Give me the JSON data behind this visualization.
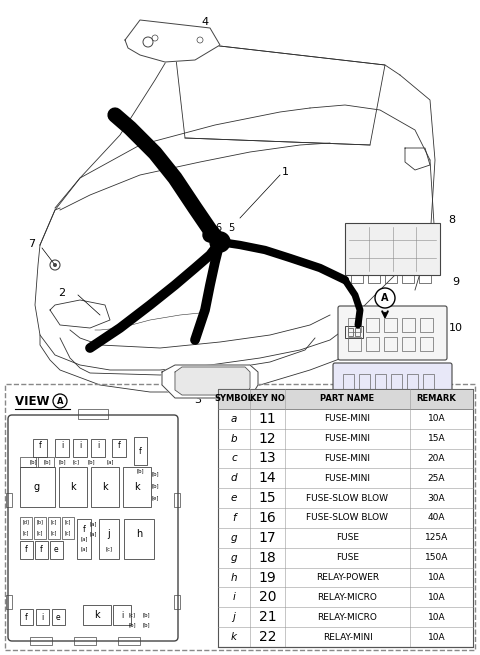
{
  "bg_color": "#ffffff",
  "table_header": [
    "SYMBOL",
    "KEY NO",
    "PART NAME",
    "REMARK"
  ],
  "table_rows": [
    [
      "a",
      "11",
      "FUSE-MINI",
      "10A"
    ],
    [
      "b",
      "12",
      "FUSE-MINI",
      "15A"
    ],
    [
      "c",
      "13",
      "FUSE-MINI",
      "20A"
    ],
    [
      "d",
      "14",
      "FUSE-MINI",
      "25A"
    ],
    [
      "e",
      "15",
      "FUSE-SLOW BLOW",
      "30A"
    ],
    [
      "f",
      "16",
      "FUSE-SLOW BLOW",
      "40A"
    ],
    [
      "g",
      "17",
      "FUSE",
      "125A"
    ],
    [
      "g",
      "18",
      "FUSE",
      "150A"
    ],
    [
      "h",
      "19",
      "RELAY-POWER",
      "10A"
    ],
    [
      "i",
      "20",
      "RELAY-MICRO",
      "10A"
    ],
    [
      "j",
      "21",
      "RELAY-MICRO",
      "10A"
    ],
    [
      "k",
      "22",
      "RELAY-MINI",
      "10A"
    ]
  ],
  "view_a_text": "VIEW ",
  "line_color": "#000000",
  "lc": "#555555"
}
